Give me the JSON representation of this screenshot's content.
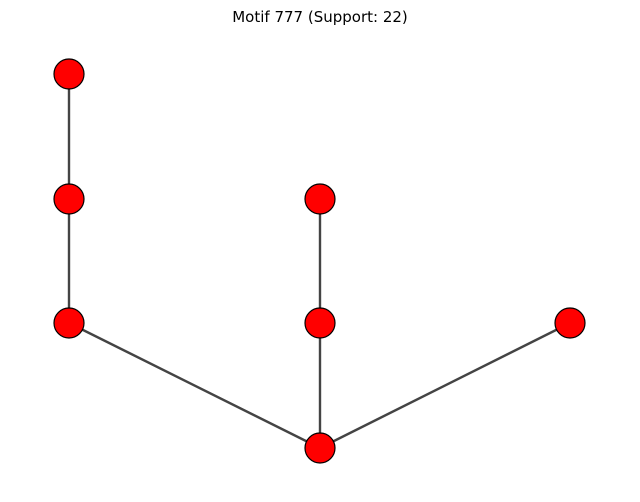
{
  "title": "Motif 777 (Support: 22)",
  "colors": {
    "node_fill": "#ff0000",
    "node_stroke": "#000000",
    "edge": "#444444",
    "background": "#ffffff"
  },
  "graph": {
    "nodes": [
      {
        "id": "n1"
      },
      {
        "id": "n2"
      },
      {
        "id": "n3"
      },
      {
        "id": "n4"
      },
      {
        "id": "n5"
      },
      {
        "id": "n6"
      },
      {
        "id": "n7"
      }
    ],
    "edges": [
      {
        "source": "n1",
        "target": "n2"
      },
      {
        "source": "n2",
        "target": "n3"
      },
      {
        "source": "n3",
        "target": "n7"
      },
      {
        "source": "n4",
        "target": "n5"
      },
      {
        "source": "n5",
        "target": "n7"
      },
      {
        "source": "n6",
        "target": "n7"
      }
    ]
  }
}
